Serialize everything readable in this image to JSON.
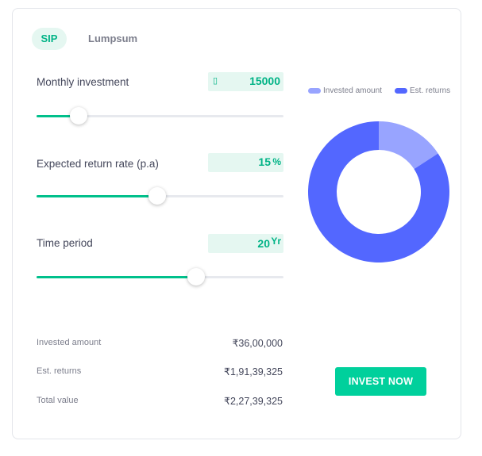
{
  "tabs": [
    {
      "label": "SIP",
      "active": true
    },
    {
      "label": "Lumpsum",
      "active": false
    }
  ],
  "inputs": {
    "monthly_investment": {
      "label": "Monthly investment",
      "currency_icon": "rupee-icon",
      "value": "15000",
      "slider_fraction": 0.17
    },
    "return_rate": {
      "label": "Expected return rate (p.a)",
      "value": "15",
      "unit": "%",
      "slider_fraction": 0.49
    },
    "time_period": {
      "label": "Time period",
      "value": "20",
      "unit": "Yr",
      "slider_fraction": 0.645
    }
  },
  "summary": {
    "invested": {
      "label": "Invested amount",
      "value": "₹36,00,000"
    },
    "returns": {
      "label": "Est. returns",
      "value": "₹1,91,39,325"
    },
    "total": {
      "label": "Total value",
      "value": "₹2,27,39,325"
    }
  },
  "chart": {
    "legend": [
      {
        "label": "Invested amount",
        "color": "#98a4ff"
      },
      {
        "label": "Est. returns",
        "color": "#5367ff"
      }
    ],
    "values": [
      3600000,
      19139325
    ],
    "colors": [
      "#98a4ff",
      "#5367ff"
    ]
  },
  "cta": {
    "label": "INVEST NOW"
  },
  "colors": {
    "accent": "#00d09c",
    "slider_fill": "#00c08b",
    "accent_text": "#00b386"
  }
}
